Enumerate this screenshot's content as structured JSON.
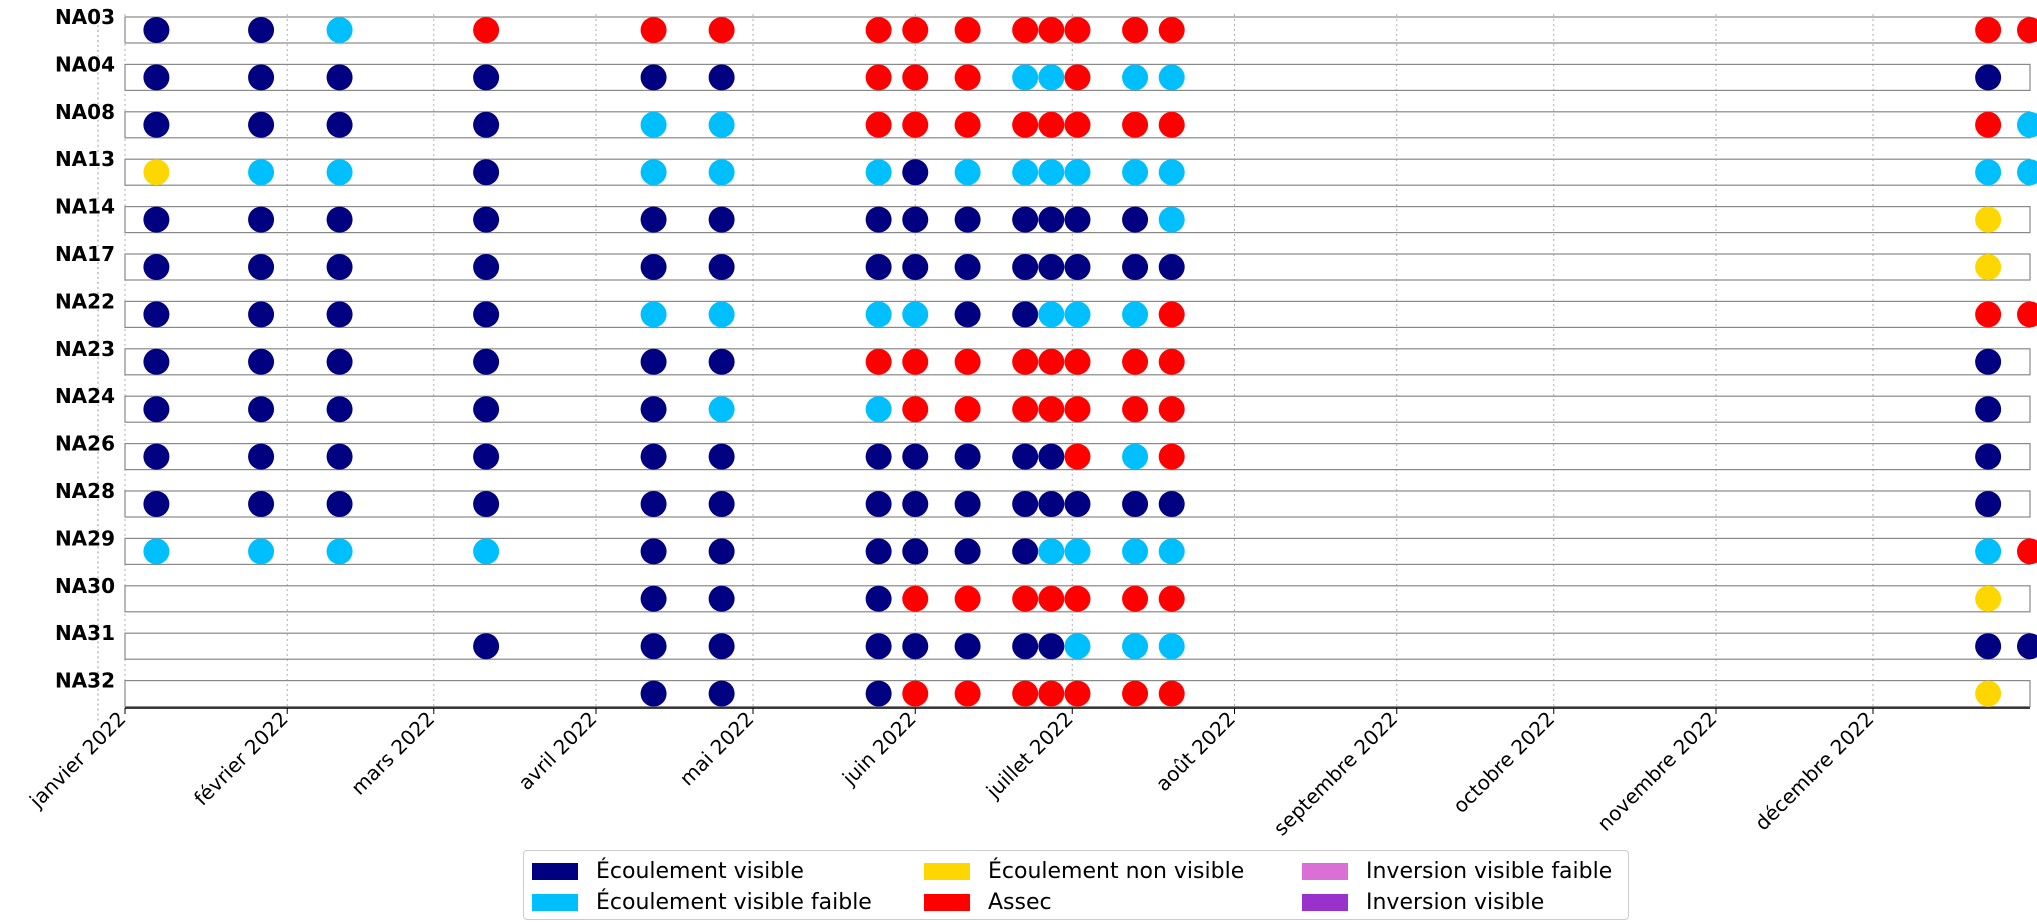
{
  "chart_data": {
    "type": "scatter",
    "title": "",
    "xlabel": "",
    "ylabel": "",
    "x_axis": {
      "type": "date",
      "range": [
        "2022-01-01",
        "2022-12-31"
      ],
      "tick_labels": [
        {
          "date": "2022-01-01",
          "label": "janvier 2022"
        },
        {
          "date": "2022-02-01",
          "label": "février 2022"
        },
        {
          "date": "2022-03-01",
          "label": "mars 2022"
        },
        {
          "date": "2022-04-01",
          "label": "avril 2022"
        },
        {
          "date": "2022-05-01",
          "label": "mai 2022"
        },
        {
          "date": "2022-06-01",
          "label": "juin 2022"
        },
        {
          "date": "2022-07-01",
          "label": "juillet 2022"
        },
        {
          "date": "2022-08-01",
          "label": "août 2022"
        },
        {
          "date": "2022-09-01",
          "label": "septembre 2022"
        },
        {
          "date": "2022-10-01",
          "label": "octobre 2022"
        },
        {
          "date": "2022-11-01",
          "label": "novembre 2022"
        },
        {
          "date": "2022-12-01",
          "label": "décembre 2022"
        }
      ],
      "grid": "vertical dotted"
    },
    "legend": {
      "placement": "bottom-center",
      "entries": [
        {
          "key": "EV",
          "label": "Écoulement visible",
          "color": "#000080"
        },
        {
          "key": "EVF",
          "label": "Écoulement visible faible",
          "color": "#00bfff"
        },
        {
          "key": "ENV",
          "label": "Écoulement non visible",
          "color": "#ffd700"
        },
        {
          "key": "AS",
          "label": "Assec",
          "color": "#ff0000"
        },
        {
          "key": "IVF",
          "label": "Inversion visible faible",
          "color": "#da70d6"
        },
        {
          "key": "IV",
          "label": "Inversion visible",
          "color": "#9932cc"
        }
      ]
    },
    "dates": [
      "2022-01-07",
      "2022-01-27",
      "2022-02-11",
      "2022-03-11",
      "2022-04-12",
      "2022-04-25",
      "2022-05-25",
      "2022-06-01",
      "2022-06-11",
      "2022-06-22",
      "2022-06-27",
      "2022-07-02",
      "2022-07-13",
      "2022-07-20",
      "2022-12-23",
      "2022-12-31"
    ],
    "stations": [
      {
        "name": "NA03",
        "observations": [
          "EV",
          "EV",
          "EVF",
          "AS",
          "AS",
          "AS",
          "AS",
          "AS",
          "AS",
          "AS",
          "AS",
          "AS",
          "AS",
          "AS",
          "AS",
          "AS"
        ]
      },
      {
        "name": "NA04",
        "observations": [
          "EV",
          "EV",
          "EV",
          "EV",
          "EV",
          "EV",
          "AS",
          "AS",
          "AS",
          "EVF",
          "EVF",
          "AS",
          "EVF",
          "EVF",
          "EV",
          null
        ]
      },
      {
        "name": "NA08",
        "observations": [
          "EV",
          "EV",
          "EV",
          "EV",
          "EVF",
          "EVF",
          "AS",
          "AS",
          "AS",
          "AS",
          "AS",
          "AS",
          "AS",
          "AS",
          "AS",
          "EVF"
        ]
      },
      {
        "name": "NA13",
        "observations": [
          "ENV",
          "EVF",
          "EVF",
          "EV",
          "EVF",
          "EVF",
          "EVF",
          "EV",
          "EVF",
          "EVF",
          "EVF",
          "EVF",
          "EVF",
          "EVF",
          "EVF",
          "EVF"
        ]
      },
      {
        "name": "NA14",
        "observations": [
          "EV",
          "EV",
          "EV",
          "EV",
          "EV",
          "EV",
          "EV",
          "EV",
          "EV",
          "EV",
          "EV",
          "EV",
          "EV",
          "EVF",
          "ENV",
          null
        ]
      },
      {
        "name": "NA17",
        "observations": [
          "EV",
          "EV",
          "EV",
          "EV",
          "EV",
          "EV",
          "EV",
          "EV",
          "EV",
          "EV",
          "EV",
          "EV",
          "EV",
          "EV",
          "ENV",
          null
        ]
      },
      {
        "name": "NA22",
        "observations": [
          "EV",
          "EV",
          "EV",
          "EV",
          "EVF",
          "EVF",
          "EVF",
          "EVF",
          "EV",
          "EV",
          "EVF",
          "EVF",
          "EVF",
          "AS",
          "AS",
          "AS"
        ]
      },
      {
        "name": "NA23",
        "observations": [
          "EV",
          "EV",
          "EV",
          "EV",
          "EV",
          "EV",
          "AS",
          "AS",
          "AS",
          "AS",
          "AS",
          "AS",
          "AS",
          "AS",
          "EV",
          null
        ]
      },
      {
        "name": "NA24",
        "observations": [
          "EV",
          "EV",
          "EV",
          "EV",
          "EV",
          "EVF",
          "EVF",
          "AS",
          "AS",
          "AS",
          "AS",
          "AS",
          "AS",
          "AS",
          "EV",
          null
        ]
      },
      {
        "name": "NA26",
        "observations": [
          "EV",
          "EV",
          "EV",
          "EV",
          "EV",
          "EV",
          "EV",
          "EV",
          "EV",
          "EV",
          "EV",
          "AS",
          "EVF",
          "AS",
          "EV",
          null
        ]
      },
      {
        "name": "NA28",
        "observations": [
          "EV",
          "EV",
          "EV",
          "EV",
          "EV",
          "EV",
          "EV",
          "EV",
          "EV",
          "EV",
          "EV",
          "EV",
          "EV",
          "EV",
          "EV",
          null
        ]
      },
      {
        "name": "NA29",
        "observations": [
          "EVF",
          "EVF",
          "EVF",
          "EVF",
          "EV",
          "EV",
          "EV",
          "EV",
          "EV",
          "EV",
          "EVF",
          "EVF",
          "EVF",
          "EVF",
          "EVF",
          "AS"
        ]
      },
      {
        "name": "NA30",
        "observations": [
          null,
          null,
          null,
          null,
          "EV",
          "EV",
          "EV",
          "AS",
          "AS",
          "AS",
          "AS",
          "AS",
          "AS",
          "AS",
          "ENV",
          null
        ]
      },
      {
        "name": "NA31",
        "observations": [
          null,
          null,
          null,
          "EV",
          "EV",
          "EV",
          "EV",
          "EV",
          "EV",
          "EV",
          "EV",
          "EVF",
          "EVF",
          "EVF",
          "EV",
          "EV"
        ]
      },
      {
        "name": "NA32",
        "observations": [
          null,
          null,
          null,
          null,
          "EV",
          "EV",
          "EV",
          "AS",
          "AS",
          "AS",
          "AS",
          "AS",
          "AS",
          "AS",
          "ENV",
          null
        ]
      }
    ]
  }
}
